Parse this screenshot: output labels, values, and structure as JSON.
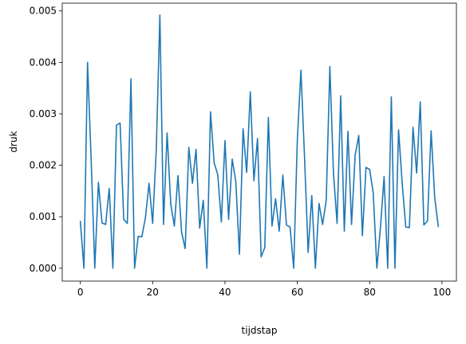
{
  "chart_data": {
    "type": "line",
    "title": "",
    "xlabel": "tijdstap",
    "ylabel": "druk",
    "xlim": [
      -5,
      104
    ],
    "ylim": [
      -0.00025,
      0.00515
    ],
    "xticks": [
      0,
      20,
      40,
      60,
      80,
      100
    ],
    "xtick_labels": [
      "0",
      "20",
      "40",
      "60",
      "80",
      "100"
    ],
    "yticks": [
      0,
      0.001,
      0.002,
      0.003,
      0.004,
      0.005
    ],
    "ytick_labels": [
      "0.000",
      "0.001",
      "0.002",
      "0.003",
      "0.004",
      "0.005"
    ],
    "grid": false,
    "legend": "none",
    "line_color": "#1f77b4",
    "series": [
      {
        "x": [
          0,
          1,
          2,
          3,
          4,
          5,
          6,
          7,
          8,
          9,
          10,
          11,
          12,
          13,
          14,
          15,
          16,
          17,
          18,
          19,
          20,
          21,
          22,
          23,
          24,
          25,
          26,
          27,
          28,
          29,
          30,
          31,
          32,
          33,
          34,
          35,
          36,
          37,
          38,
          39,
          40,
          41,
          42,
          43,
          44,
          45,
          46,
          47,
          48,
          49,
          50,
          51,
          52,
          53,
          54,
          55,
          56,
          57,
          58,
          59,
          60,
          61,
          62,
          63,
          64,
          65,
          66,
          67,
          68,
          69,
          70,
          71,
          72,
          73,
          74,
          75,
          76,
          77,
          78,
          79,
          80,
          81,
          82,
          83,
          84,
          85,
          86,
          87,
          88,
          89,
          90,
          91,
          92,
          93,
          94,
          95,
          96,
          97,
          98,
          99
        ],
        "values": [
          0.00092,
          0.0,
          0.004,
          0.0021,
          0.0,
          0.00167,
          0.00088,
          0.00085,
          0.00155,
          0.0,
          0.00278,
          0.00282,
          0.00095,
          0.00087,
          0.00368,
          0.0,
          0.00062,
          0.00061,
          0.00098,
          0.00165,
          0.00087,
          0.0023,
          0.00492,
          0.00085,
          0.00263,
          0.00125,
          0.00082,
          0.0018,
          0.0007,
          0.00038,
          0.00235,
          0.00165,
          0.00231,
          0.00078,
          0.00132,
          0.0,
          0.00304,
          0.00205,
          0.00182,
          0.0009,
          0.00248,
          0.00095,
          0.00212,
          0.00168,
          0.00027,
          0.00271,
          0.00186,
          0.00343,
          0.0017,
          0.00252,
          0.00022,
          0.0004,
          0.00293,
          0.00082,
          0.00135,
          0.00072,
          0.00181,
          0.00084,
          0.0008,
          0.0,
          0.00248,
          0.00385,
          0.00216,
          0.00031,
          0.00141,
          0.0,
          0.00126,
          0.00085,
          0.00132,
          0.00392,
          0.00185,
          0.00087,
          0.00335,
          0.00072,
          0.00266,
          0.00085,
          0.0022,
          0.00258,
          0.00063,
          0.00196,
          0.00192,
          0.00146,
          0.0,
          0.0008,
          0.00178,
          0.0,
          0.00333,
          0.0,
          0.00269,
          0.00165,
          0.0008,
          0.00079,
          0.00274,
          0.00185,
          0.00323,
          0.00084,
          0.00092,
          0.00267,
          0.00137,
          0.0008
        ]
      }
    ]
  }
}
